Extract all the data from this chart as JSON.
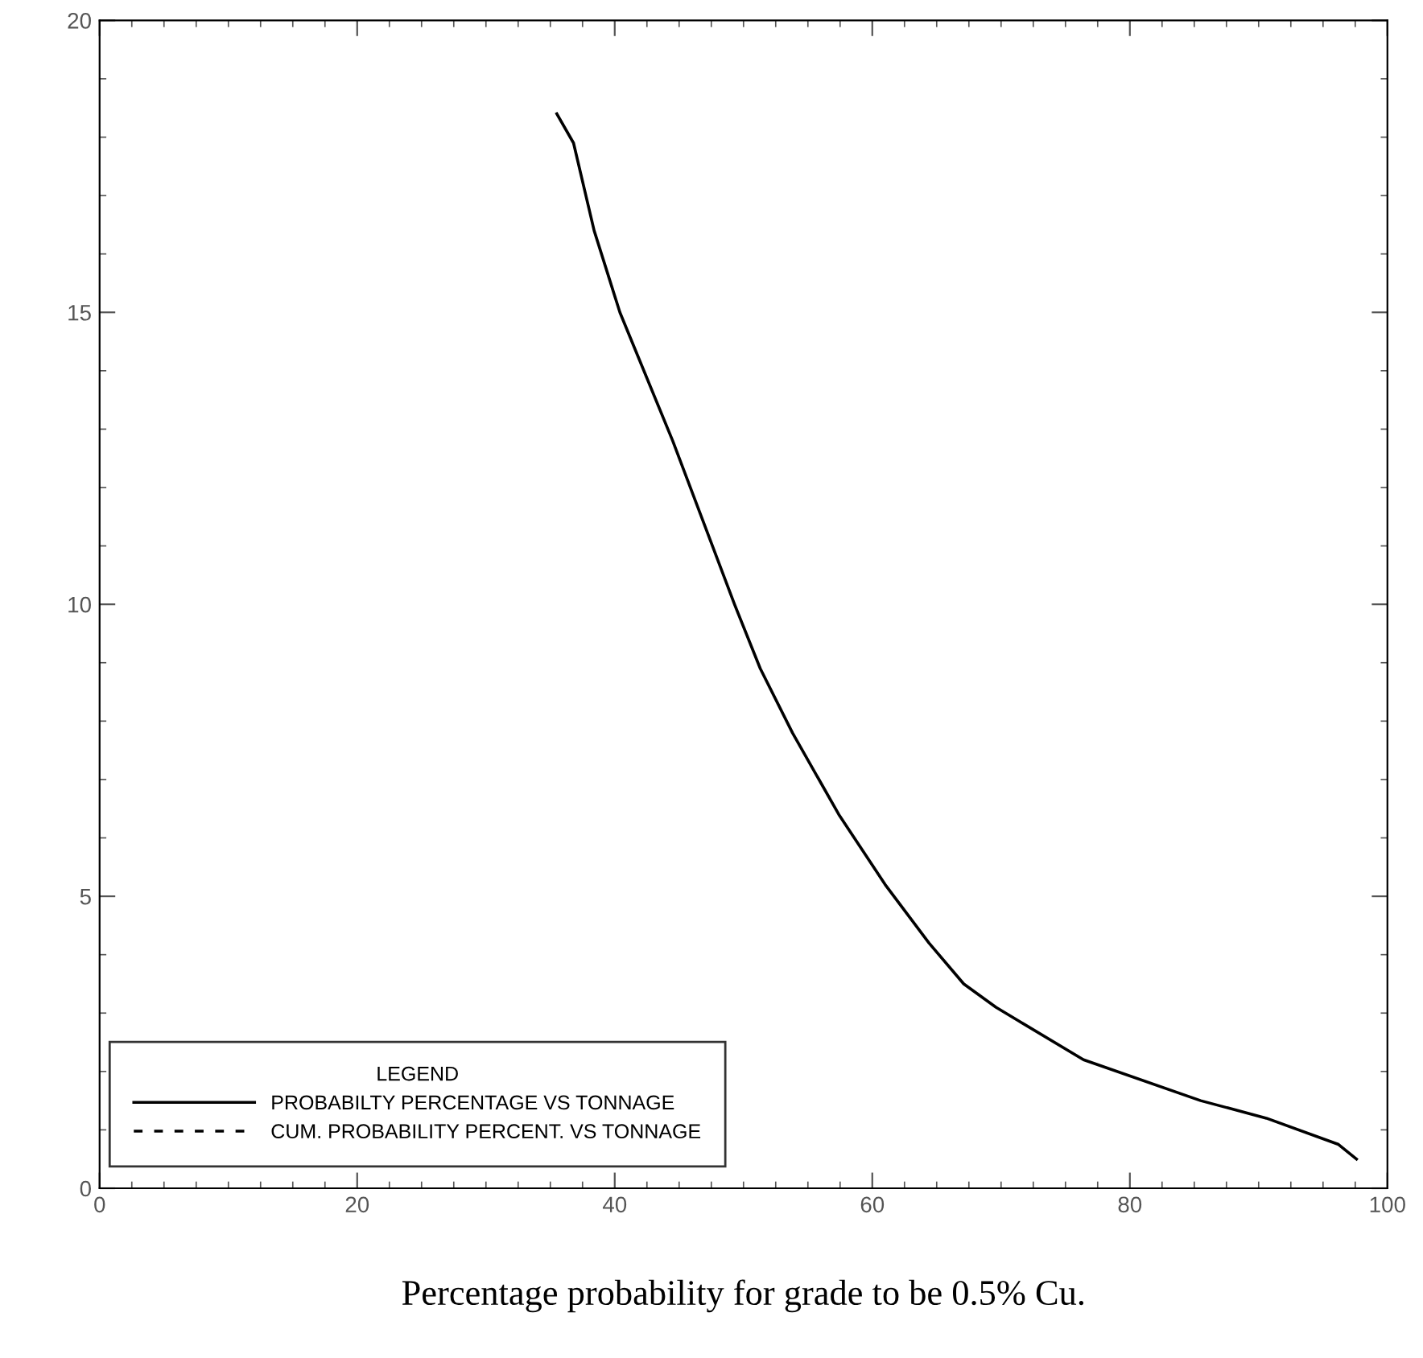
{
  "chart_data": {
    "type": "line",
    "xlabel": "Percentage probability for grade to be 0.5% Cu.",
    "legend_title": "LEGEND",
    "xlim": [
      0,
      100
    ],
    "xticks": [
      0,
      20,
      40,
      60,
      80,
      100
    ],
    "ylim": [
      0,
      20
    ],
    "yticks": [
      0,
      5,
      10,
      15,
      20
    ],
    "grid": false,
    "legend": "bottom left",
    "marker": "none",
    "series": [
      {
        "name": "PROBABILTY PERCENTAGE VS TONNAGE",
        "color": "#000000",
        "line_style": "solid",
        "x": [
          35.5,
          36.8,
          38.4,
          40.4,
          44.5,
          49.3,
          51.3,
          53.8,
          57.4,
          61.0,
          64.4,
          67.1,
          69.6,
          76.4,
          85.5,
          90.6,
          96.2,
          97.6
        ],
        "values": [
          18.4,
          17.9,
          16.4,
          15.0,
          12.8,
          10.0,
          8.9,
          7.8,
          6.4,
          5.2,
          4.2,
          3.5,
          3.1,
          2.2,
          1.5,
          1.2,
          0.75,
          0.5
        ]
      },
      {
        "name": "CUM. PROBABILITY PERCENT. VS TONNAGE",
        "color": "#000000",
        "line_style": "dashed"
      }
    ]
  }
}
